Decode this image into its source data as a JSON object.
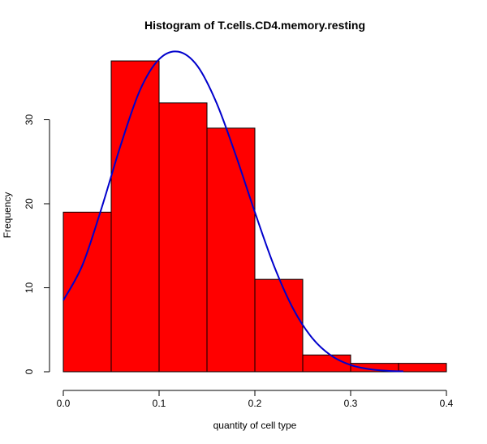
{
  "chart_data": {
    "type": "bar",
    "title": "Histogram of T.cells.CD4.memory.resting",
    "xlabel": "quantity of cell type",
    "ylabel": "Frequency",
    "bins": [
      {
        "start": 0.0,
        "end": 0.05,
        "count": 19
      },
      {
        "start": 0.05,
        "end": 0.1,
        "count": 37
      },
      {
        "start": 0.1,
        "end": 0.15,
        "count": 32
      },
      {
        "start": 0.15,
        "end": 0.2,
        "count": 29
      },
      {
        "start": 0.2,
        "end": 0.25,
        "count": 11
      },
      {
        "start": 0.25,
        "end": 0.3,
        "count": 2
      },
      {
        "start": 0.3,
        "end": 0.35,
        "count": 1
      },
      {
        "start": 0.35,
        "end": 0.4,
        "count": 1
      }
    ],
    "xlim": [
      0,
      0.4
    ],
    "ylim": [
      0,
      38
    ],
    "x_ticks": [
      "0.0",
      "0.1",
      "0.2",
      "0.3",
      "0.4"
    ],
    "y_ticks": [
      "0",
      "10",
      "20",
      "30"
    ],
    "grid": false,
    "bar_color": "#ff0000",
    "density_curve": {
      "color": "#0000cc",
      "x": [
        0.0,
        0.02,
        0.04,
        0.06,
        0.08,
        0.1,
        0.12,
        0.14,
        0.16,
        0.18,
        0.2,
        0.22,
        0.24,
        0.26,
        0.28,
        0.3,
        0.32,
        0.34,
        0.355
      ],
      "y": [
        8.5,
        12.7,
        19.5,
        27.0,
        33.5,
        37.2,
        38.1,
        36.4,
        32.0,
        25.8,
        19.0,
        12.6,
        7.5,
        4.0,
        1.9,
        0.8,
        0.3,
        0.1,
        0.05
      ]
    }
  }
}
